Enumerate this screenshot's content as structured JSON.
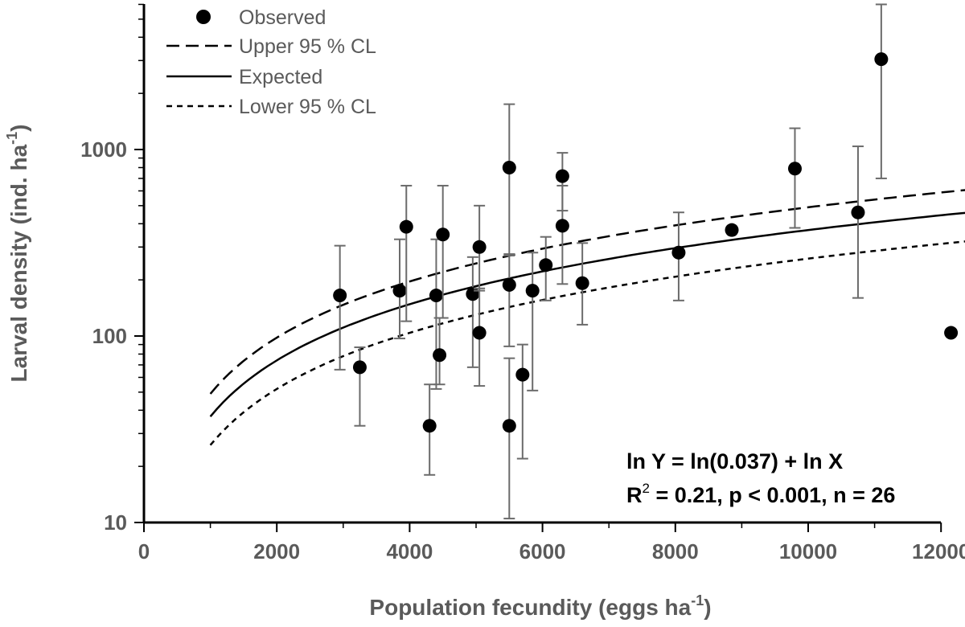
{
  "chart_data": {
    "type": "scatter",
    "title": "",
    "xlabel": "Population  fecundity (eggs ha",
    "xlabel_sup": "-1",
    "xlabel_end": ")",
    "ylabel": "Larval density (ind. ha",
    "ylabel_sup": "-1",
    "ylabel_end": ")",
    "xlim": [
      0,
      12500
    ],
    "ylim": [
      10,
      6000
    ],
    "yscale": "log",
    "grid": false,
    "legend_position": "top-left",
    "x_ticks": [
      "0",
      "2000",
      "4000",
      "6000",
      "8000",
      "10000",
      "12000"
    ],
    "y_ticks": [
      "10",
      "100",
      "1000"
    ],
    "legend": {
      "observed": "Observed",
      "upper": "Upper 95 % CL",
      "expected": "Expected",
      "lower": "Lower 95 % CL"
    },
    "annotation_line1": "ln Y = ln(0.037) + ln X",
    "annotation_r2_prefix": "R",
    "annotation_r2_sup": "2",
    "annotation_r2_rest": " =  0.21, p < 0.001, n = 26",
    "series": [
      {
        "name": "Observed",
        "type": "scatter",
        "points": [
          {
            "x": 2950,
            "y": 165,
            "lo": 66,
            "hi": 305
          },
          {
            "x": 3250,
            "y": 68,
            "lo": 33,
            "hi": 87
          },
          {
            "x": 3850,
            "y": 175,
            "lo": 97,
            "hi": 330
          },
          {
            "x": 3950,
            "y": 385,
            "lo": 120,
            "hi": 640
          },
          {
            "x": 4300,
            "y": 33,
            "lo": 18,
            "hi": 55
          },
          {
            "x": 4400,
            "y": 165,
            "lo": 52,
            "hi": 330
          },
          {
            "x": 4450,
            "y": 79,
            "lo": 55,
            "hi": 125
          },
          {
            "x": 4500,
            "y": 350,
            "lo": 125,
            "hi": 640
          },
          {
            "x": 4950,
            "y": 168,
            "lo": 68,
            "hi": 265
          },
          {
            "x": 5050,
            "y": 300,
            "lo": 175,
            "hi": 500
          },
          {
            "x": 5050,
            "y": 104,
            "lo": 54,
            "hi": 180
          },
          {
            "x": 5500,
            "y": 800,
            "lo": 270,
            "hi": 1750
          },
          {
            "x": 5500,
            "y": 188,
            "lo": 88,
            "hi": 275
          },
          {
            "x": 5500,
            "y": 33,
            "lo": 10.5,
            "hi": 76
          },
          {
            "x": 5700,
            "y": 62,
            "lo": 22,
            "hi": 90
          },
          {
            "x": 5850,
            "y": 175,
            "lo": 51,
            "hi": 280
          },
          {
            "x": 6050,
            "y": 240,
            "lo": 155,
            "hi": 340
          },
          {
            "x": 6300,
            "y": 390,
            "lo": 190,
            "hi": 640
          },
          {
            "x": 6300,
            "y": 720,
            "lo": 470,
            "hi": 960
          },
          {
            "x": 6600,
            "y": 192,
            "lo": 115,
            "hi": 315
          },
          {
            "x": 8050,
            "y": 280,
            "lo": 155,
            "hi": 460
          },
          {
            "x": 8850,
            "y": 370,
            "lo": 370,
            "hi": 370
          },
          {
            "x": 9800,
            "y": 790,
            "lo": 380,
            "hi": 1300
          },
          {
            "x": 10750,
            "y": 460,
            "lo": 160,
            "hi": 1040
          },
          {
            "x": 11100,
            "y": 3050,
            "lo": 700,
            "hi": 6000
          },
          {
            "x": 12150,
            "y": 104,
            "lo": 104,
            "hi": 104
          }
        ]
      },
      {
        "name": "Upper 95 % CL",
        "type": "line",
        "style": "long-dash",
        "x_range": [
          1000,
          12500
        ],
        "coef": 0.049
      },
      {
        "name": "Expected",
        "type": "line",
        "style": "solid",
        "x_range": [
          1000,
          12500
        ],
        "coef": 0.037
      },
      {
        "name": "Lower 95 % CL",
        "type": "line",
        "style": "short-dash",
        "x_range": [
          1000,
          12500
        ],
        "coef": 0.026
      }
    ]
  }
}
